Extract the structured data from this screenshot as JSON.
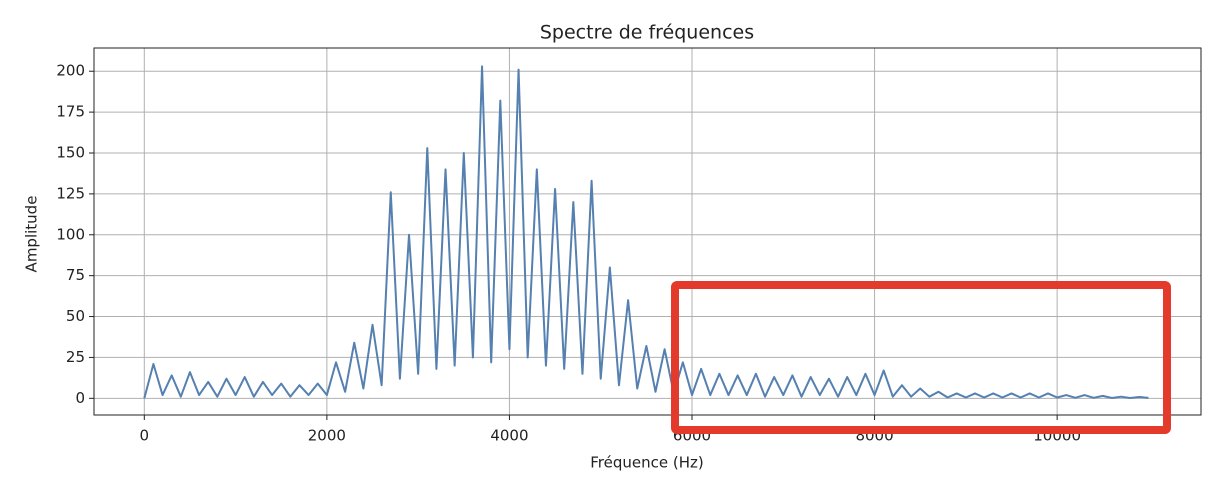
{
  "chart_data": {
    "type": "line",
    "title": "Spectre de fréquences",
    "x_label": "Fréquence (Hz)",
    "y_label": "Amplitude",
    "x": [
      0,
      100,
      200,
      300,
      400,
      500,
      600,
      700,
      800,
      900,
      1000,
      1100,
      1200,
      1300,
      1400,
      1500,
      1600,
      1700,
      1800,
      1900,
      2000,
      2100,
      2200,
      2300,
      2400,
      2500,
      2600,
      2700,
      2800,
      2900,
      3000,
      3100,
      3200,
      3300,
      3400,
      3500,
      3600,
      3700,
      3800,
      3900,
      4000,
      4100,
      4200,
      4300,
      4400,
      4500,
      4600,
      4700,
      4800,
      4900,
      5000,
      5100,
      5200,
      5300,
      5400,
      5500,
      5600,
      5700,
      5800,
      5900,
      6000,
      6100,
      6200,
      6300,
      6400,
      6500,
      6600,
      6700,
      6800,
      6900,
      7000,
      7100,
      7200,
      7300,
      7400,
      7500,
      7600,
      7700,
      7800,
      7900,
      8000,
      8100,
      8200,
      8300,
      8400,
      8500,
      8600,
      8700,
      8800,
      8900,
      9000,
      9100,
      9200,
      9300,
      9400,
      9500,
      9600,
      9700,
      9800,
      9900,
      10000,
      10100,
      10200,
      10300,
      10400,
      10500,
      10600,
      10700,
      10800,
      10900,
      11000
    ],
    "series": [
      {
        "color": "#5580b0",
        "values": [
          0,
          21,
          2,
          14,
          1,
          16,
          2,
          10,
          1,
          12,
          2,
          13,
          1,
          10,
          2,
          9,
          1,
          8,
          2,
          9,
          2,
          22,
          4,
          34,
          6,
          45,
          8,
          126,
          12,
          100,
          15,
          153,
          18,
          140,
          20,
          150,
          25,
          203,
          22,
          182,
          30,
          201,
          25,
          140,
          20,
          128,
          18,
          120,
          15,
          133,
          12,
          80,
          8,
          60,
          6,
          32,
          4,
          30,
          3,
          22,
          2,
          18,
          2,
          15,
          2,
          14,
          2,
          15,
          1,
          13,
          2,
          14,
          1,
          13,
          2,
          12,
          1,
          13,
          2,
          15,
          2,
          17,
          1,
          8,
          1,
          6,
          1,
          4,
          0.5,
          3,
          0.5,
          3,
          0.5,
          3,
          0.5,
          3,
          0.5,
          3,
          0.5,
          3,
          0.5,
          2,
          0.3,
          2,
          0.3,
          1.5,
          0.2,
          1,
          0.2,
          0.8,
          0.3
        ]
      }
    ],
    "xlim": [
      -551,
      11576
    ],
    "ylim": [
      -10.2,
      214.2
    ],
    "xticks": [
      0,
      2000,
      4000,
      6000,
      8000,
      10000
    ],
    "yticks": [
      0,
      25,
      50,
      75,
      100,
      125,
      150,
      175,
      200
    ],
    "grid": true
  }
}
